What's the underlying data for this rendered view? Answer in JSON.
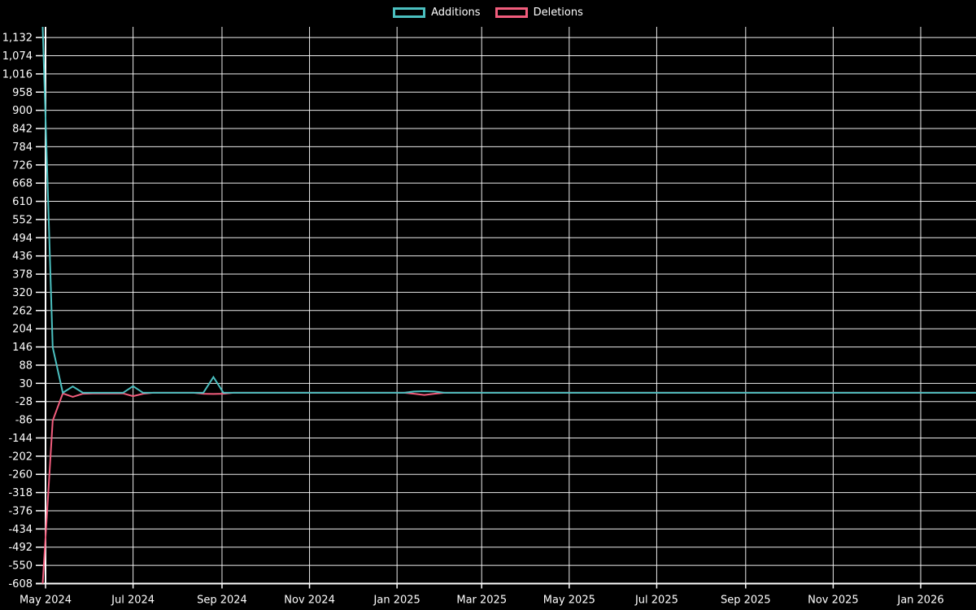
{
  "chart_data": {
    "type": "line",
    "title": "",
    "legend_position": "top",
    "grid": true,
    "background_color": "#000000",
    "grid_color": "#ffffff",
    "text_color": "#ffffff",
    "x_axis": {
      "type": "time",
      "ticks": [
        {
          "date": "2024-05-01",
          "label": "May 2024"
        },
        {
          "date": "2024-07-01",
          "label": "Jul 2024"
        },
        {
          "date": "2024-09-01",
          "label": "Sep 2024"
        },
        {
          "date": "2024-11-01",
          "label": "Nov 2024"
        },
        {
          "date": "2025-01-01",
          "label": "Jan 2025"
        },
        {
          "date": "2025-03-01",
          "label": "Mar 2025"
        },
        {
          "date": "2025-05-01",
          "label": "May 2025"
        },
        {
          "date": "2025-07-01",
          "label": "Jul 2025"
        },
        {
          "date": "2025-09-01",
          "label": "Sep 2025"
        },
        {
          "date": "2025-11-01",
          "label": "Nov 2025"
        },
        {
          "date": "2026-01-01",
          "label": "Jan 2026"
        }
      ]
    },
    "y_axis": {
      "min": -608,
      "max": 1166,
      "tick_step": 58,
      "ticks": [
        -608,
        -550,
        -492,
        -434,
        -376,
        -318,
        -260,
        -202,
        -144,
        -86,
        -28,
        30,
        88,
        146,
        204,
        262,
        320,
        378,
        436,
        494,
        552,
        610,
        668,
        726,
        784,
        842,
        900,
        958,
        1016,
        1074,
        1132
      ]
    },
    "weeks": {
      "start_date": "2024-04-29",
      "interval_days": 7,
      "count": 94
    },
    "series": [
      {
        "name": "Additions",
        "color": "#4bc0c0",
        "values": [
          1166,
          145,
          0,
          20,
          0,
          0,
          0,
          0,
          0,
          21,
          0,
          0,
          0,
          0,
          0,
          0,
          0,
          50,
          0,
          0,
          0,
          0,
          0,
          0,
          0,
          0,
          0,
          0,
          0,
          0,
          0,
          0,
          0,
          0,
          0,
          0,
          0,
          4,
          5,
          4,
          0,
          0,
          0,
          0,
          0,
          0,
          0,
          0,
          0,
          0,
          0,
          0,
          0,
          0,
          0,
          0,
          0,
          0,
          0,
          0,
          0,
          0,
          0,
          0,
          0,
          0,
          0,
          0,
          0,
          0,
          0,
          0,
          0,
          0,
          0,
          0,
          0,
          0,
          0,
          0,
          0,
          0,
          0,
          0,
          0,
          0,
          0,
          0,
          0,
          0,
          0,
          0,
          0,
          0
        ]
      },
      {
        "name": "Deletions",
        "color": "#f25d7d",
        "values": [
          -608,
          -89,
          -2,
          -13,
          -3,
          -2,
          -2,
          -2,
          -2,
          -11,
          -3,
          0,
          0,
          0,
          0,
          0,
          -3,
          -4,
          -3,
          0,
          0,
          0,
          0,
          0,
          0,
          0,
          0,
          0,
          0,
          0,
          0,
          0,
          0,
          0,
          0,
          0,
          0,
          -3,
          -7,
          -3,
          0,
          0,
          0,
          0,
          0,
          0,
          0,
          0,
          0,
          0,
          0,
          0,
          0,
          0,
          0,
          0,
          0,
          0,
          0,
          0,
          0,
          0,
          0,
          0,
          0,
          0,
          0,
          0,
          0,
          0,
          0,
          0,
          0,
          0,
          0,
          0,
          0,
          0,
          0,
          0,
          0,
          0,
          0,
          0,
          0,
          0,
          0,
          0,
          0,
          0,
          0,
          0,
          0,
          0
        ]
      }
    ]
  }
}
